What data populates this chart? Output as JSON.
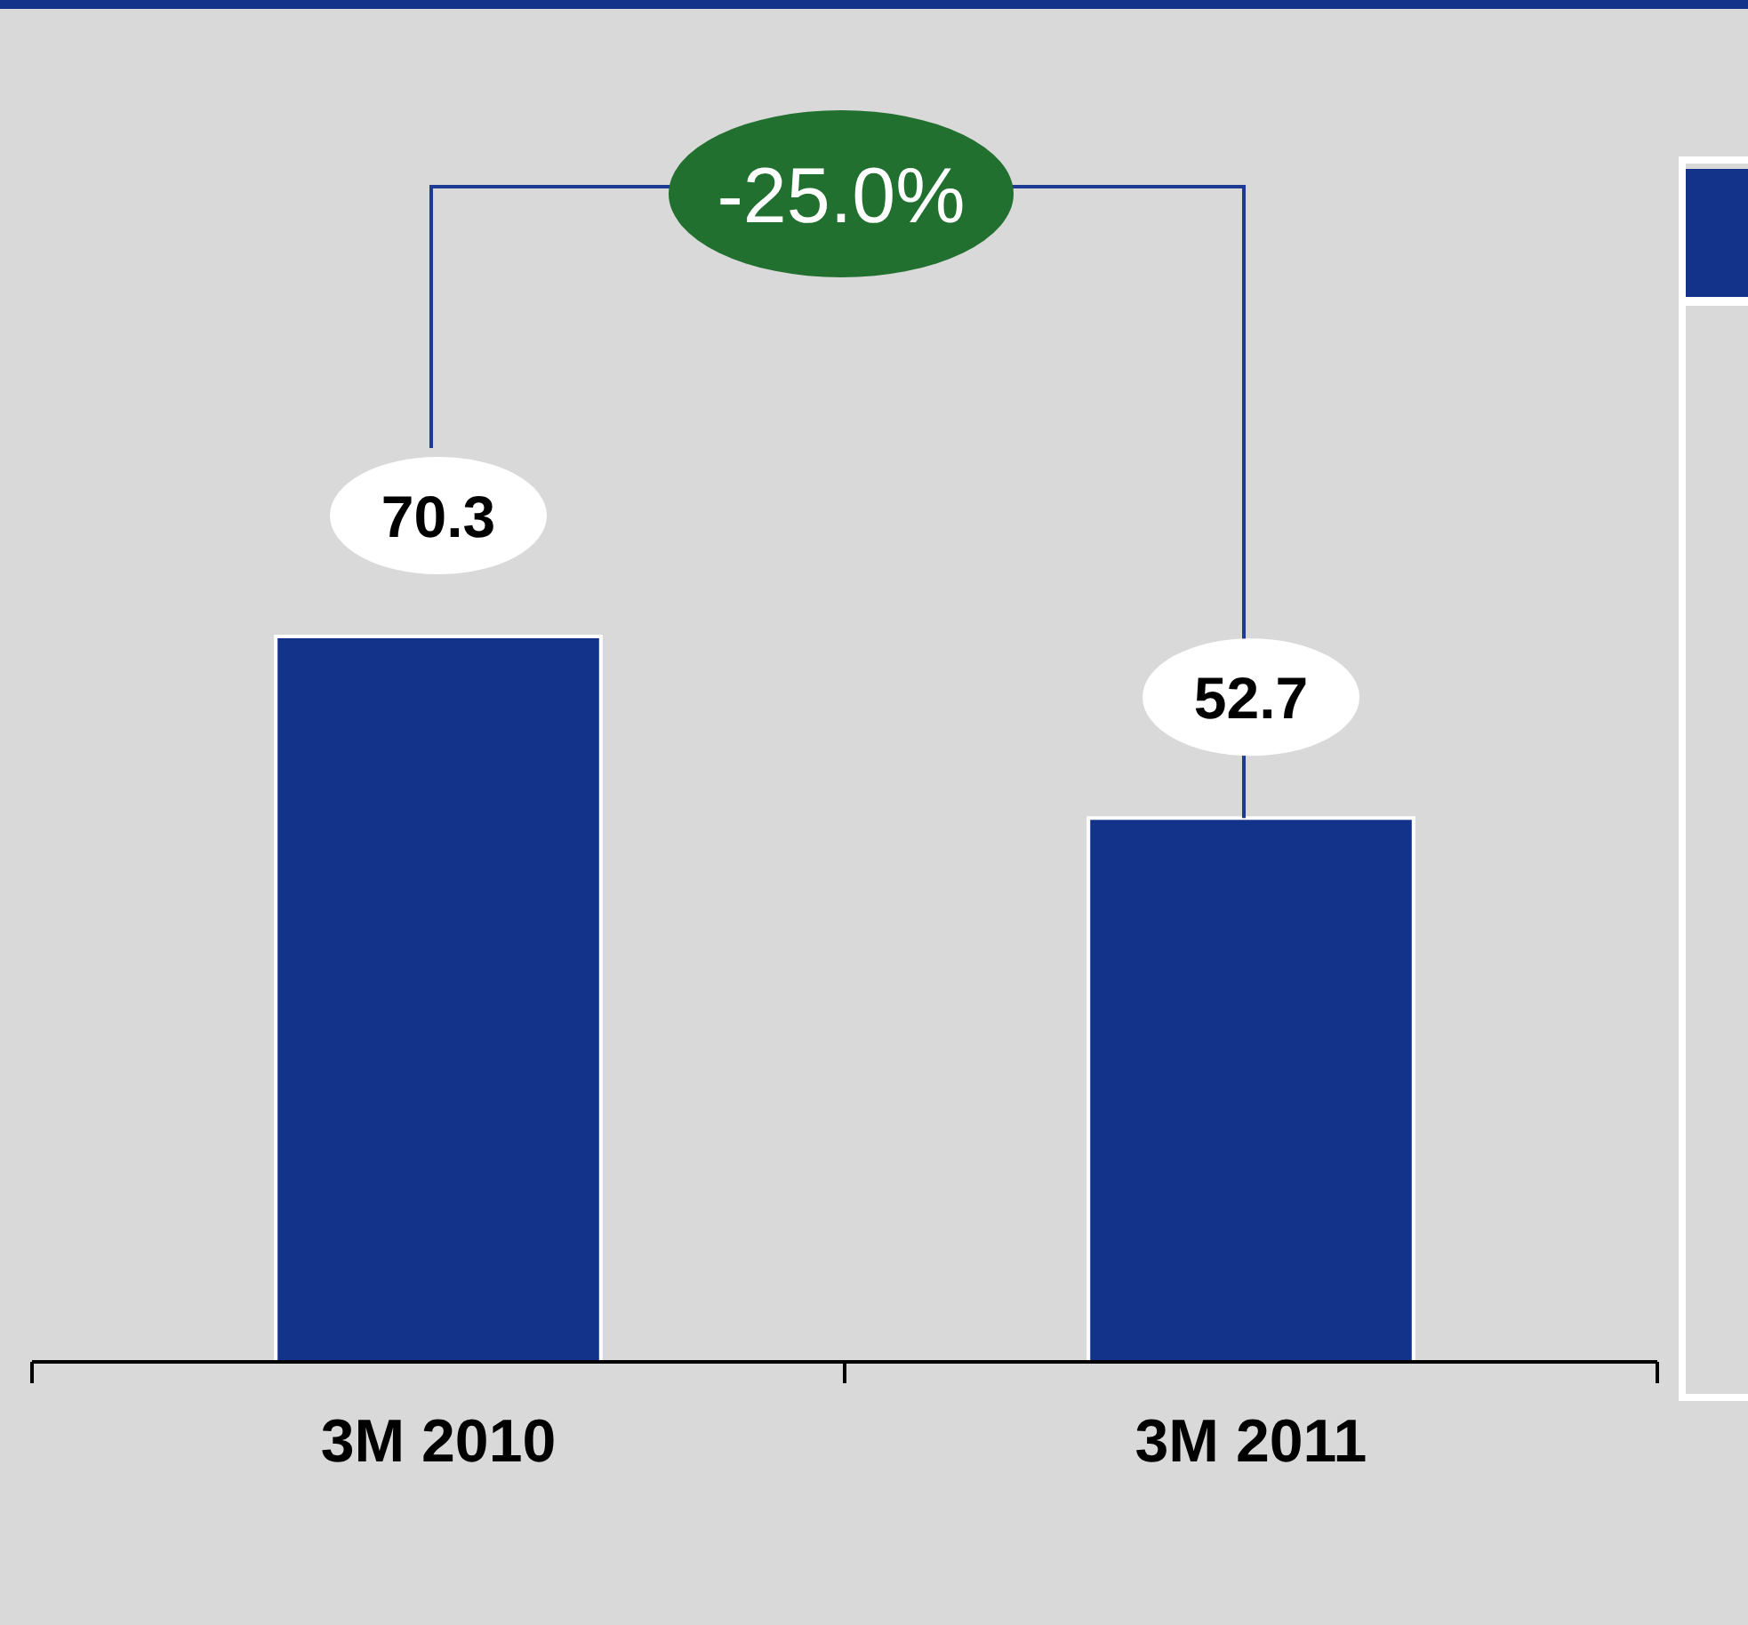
{
  "chart_data": {
    "type": "bar",
    "categories": [
      "3M 2010",
      "3M 2011"
    ],
    "values": [
      70.3,
      52.7
    ],
    "color": "#13328a",
    "data_labels": true,
    "annotations": [
      "-25.0%"
    ]
  }
}
